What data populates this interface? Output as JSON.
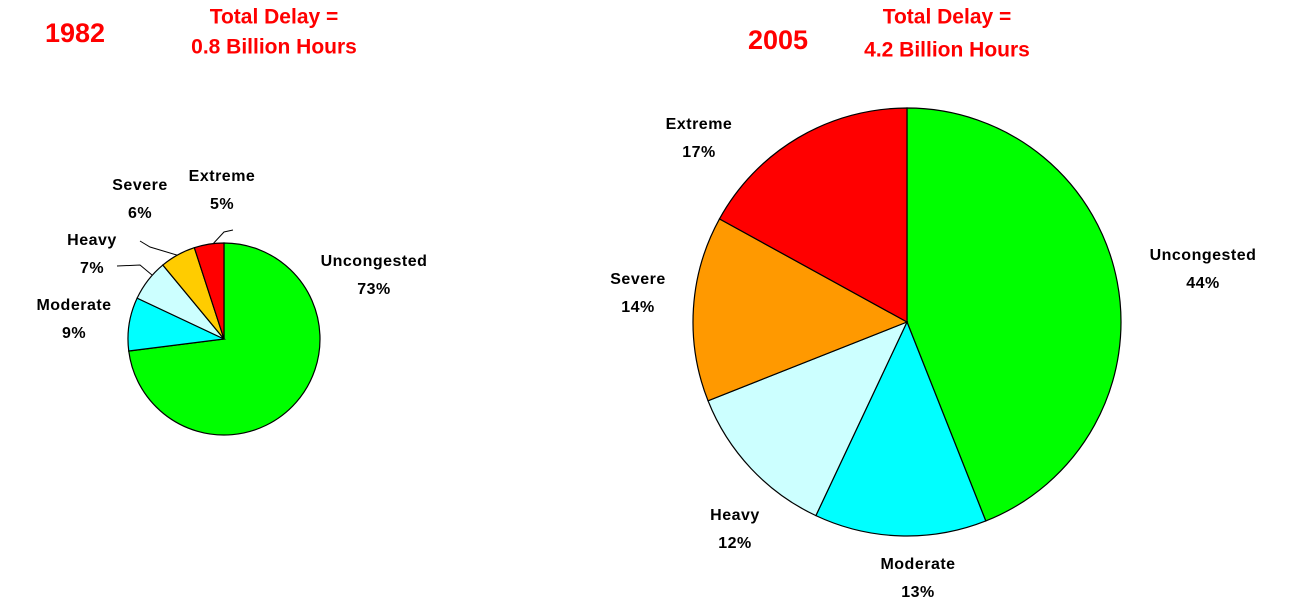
{
  "chart_data": [
    {
      "type": "pie",
      "title": "1982",
      "subtitle": [
        "Total Delay =",
        "0.8 Billion Hours"
      ],
      "categories": [
        "Uncongested",
        "Moderate",
        "Heavy",
        "Severe",
        "Extreme"
      ],
      "values": [
        73,
        9,
        7,
        6,
        5
      ],
      "value_labels": [
        "73%",
        "9%",
        "7%",
        "6%",
        "5%"
      ],
      "colors": [
        "#00ff00",
        "#00ffff",
        "#ccffff",
        "#ffcc00",
        "#ff0000"
      ]
    },
    {
      "type": "pie",
      "title": "2005",
      "subtitle": [
        "Total Delay =",
        "4.2 Billion Hours"
      ],
      "categories": [
        "Uncongested",
        "Moderate",
        "Heavy",
        "Severe",
        "Extreme"
      ],
      "values": [
        44,
        13,
        12,
        14,
        17
      ],
      "value_labels": [
        "44%",
        "13%",
        "12%",
        "14%",
        "17%"
      ],
      "colors": [
        "#00ff00",
        "#00ffff",
        "#ccffff",
        "#ff9900",
        "#ff0000"
      ]
    }
  ]
}
